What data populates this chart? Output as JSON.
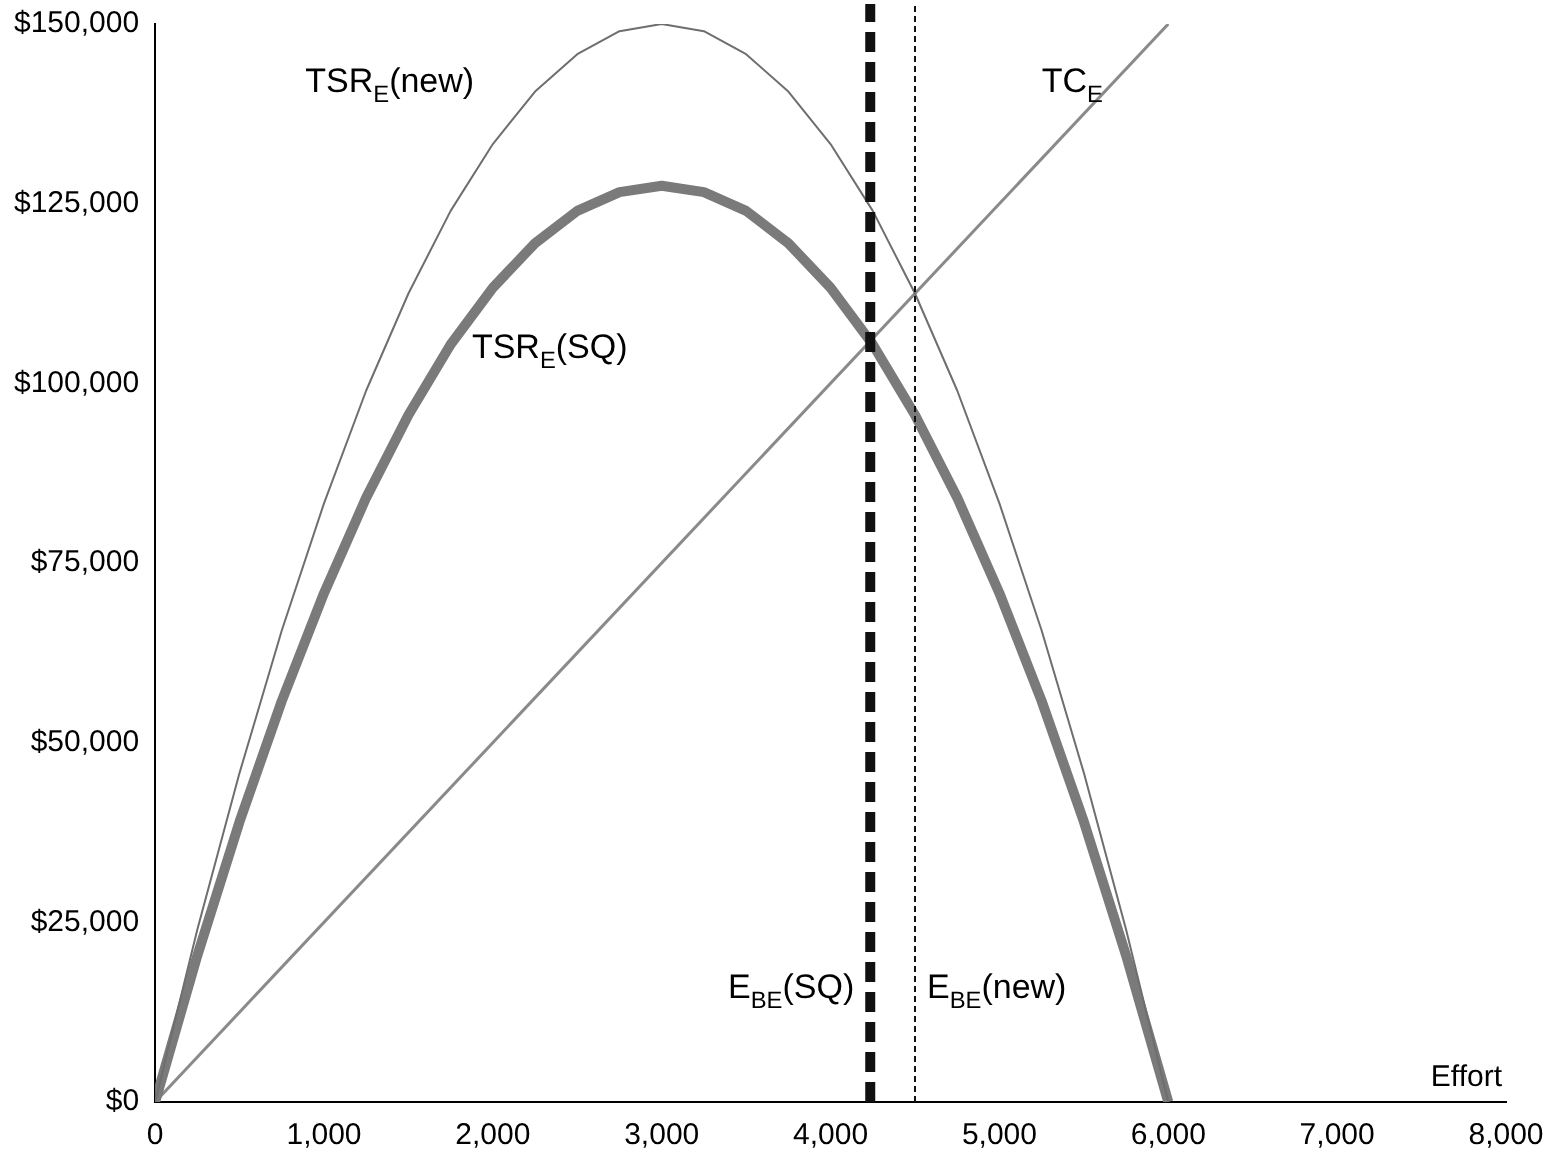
{
  "chart_data": {
    "type": "line",
    "xlabel": "Effort",
    "xlim": [
      0,
      8000
    ],
    "xticks": [
      0,
      {
        "value": 1000,
        "label": "1,000"
      },
      {
        "value": 2000,
        "label": "2,000"
      },
      {
        "value": 3000,
        "label": "3,000"
      },
      {
        "value": 4000,
        "label": "4,000"
      },
      {
        "value": 5000,
        "label": "5,000"
      },
      {
        "value": 6000,
        "label": "6,000"
      },
      {
        "value": 7000,
        "label": "7,000"
      },
      {
        "value": 8000,
        "label": "8,000"
      }
    ],
    "ylim": [
      0,
      150000
    ],
    "yticks": [
      {
        "value": 0,
        "label": "$0"
      },
      {
        "value": 25000,
        "label": "$25,000"
      },
      {
        "value": 50000,
        "label": "$50,000"
      },
      {
        "value": 75000,
        "label": "$75,000"
      },
      {
        "value": 100000,
        "label": "$100,000"
      },
      {
        "value": 125000,
        "label": "$125,000"
      },
      {
        "value": 150000,
        "label": "$150,000"
      }
    ],
    "grid": false,
    "legend": false,
    "marker": "none",
    "series": [
      {
        "name": "TSR$_{E}$(new)",
        "color": "#6e6e6e",
        "x": [
          0,
          250,
          500,
          750,
          1000,
          1250,
          1500,
          1750,
          2000,
          2250,
          2500,
          2750,
          3000,
          3250,
          3500,
          3750,
          4000,
          4250,
          4500,
          4750,
          5000,
          5250,
          5500,
          5750,
          6000
        ],
        "values": [
          0,
          24000,
          45800,
          65600,
          83300,
          99000,
          112500,
          124000,
          133300,
          140600,
          145800,
          149000,
          150000,
          149000,
          145800,
          140600,
          133300,
          124000,
          112500,
          99000,
          83300,
          65600,
          45800,
          24000,
          0
        ]
      },
      {
        "name": "TSR$_{E}$(SQ)",
        "color": "#7a7a7a",
        "x": [
          0,
          250,
          500,
          750,
          1000,
          1250,
          1500,
          1750,
          2000,
          2250,
          2500,
          2750,
          3000,
          3250,
          3500,
          3750,
          4000,
          4250,
          4500,
          4750,
          5000,
          5250,
          5500,
          5750,
          6000
        ],
        "values": [
          0,
          20400,
          39000,
          55800,
          70800,
          84100,
          95600,
          105400,
          113300,
          119500,
          124000,
          126600,
          127500,
          126600,
          124000,
          119500,
          113300,
          105400,
          95600,
          84100,
          70800,
          55800,
          39000,
          20400,
          0
        ]
      },
      {
        "name": "TC$_{E}$",
        "color": "#8a8a8a",
        "x": [
          0,
          6000
        ],
        "values": [
          0,
          150000
        ]
      }
    ],
    "ref_lines": [
      {
        "axis": "x",
        "value": 4235,
        "label": "E$_{BE}$(SQ)",
        "color": "#111111",
        "line_style": "dashed"
      },
      {
        "axis": "x",
        "value": 4500,
        "label": "E$_{BE}$(new)",
        "color": "#111111",
        "line_style": "dotted"
      }
    ]
  }
}
